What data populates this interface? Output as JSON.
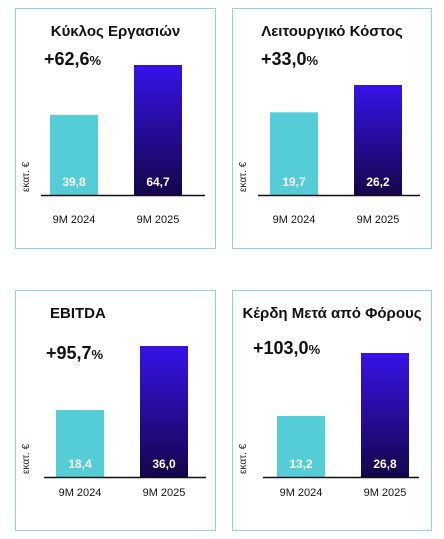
{
  "colors": {
    "panel_border": "#8ed4df",
    "bar_2024": "#55cdd6",
    "bar_2025_top": "#3712e8",
    "bar_2025_bottom": "#14064a",
    "axis": "#111111",
    "label_text": "#ffffff"
  },
  "chart_data": [
    {
      "type": "bar",
      "title": "Κύκλος Εργασιών",
      "change": "+62,6",
      "change_unit": "%",
      "ylabel": "εκατ. €",
      "categories": [
        "9M 2024",
        "9M 2025"
      ],
      "values": [
        39.8,
        64.7
      ],
      "value_labels": [
        "39,8",
        "64,7"
      ],
      "ylim": [
        0,
        70
      ]
    },
    {
      "type": "bar",
      "title": "Λειτουργικό Κόστος",
      "change": "+33,0",
      "change_unit": "%",
      "ylabel": "εκατ. €",
      "categories": [
        "9M 2024",
        "9M 2025"
      ],
      "values": [
        19.7,
        26.2
      ],
      "value_labels": [
        "19,7",
        "26,2"
      ],
      "ylim": [
        0,
        30
      ]
    },
    {
      "type": "bar",
      "title": "EBITDA",
      "change": "+95,7",
      "change_unit": "%",
      "ylabel": "εκατ. €",
      "categories": [
        "9M 2024",
        "9M 2025"
      ],
      "values": [
        18.4,
        36.0
      ],
      "value_labels": [
        "18,4",
        "36,0"
      ],
      "ylim": [
        0,
        40
      ]
    },
    {
      "type": "bar",
      "title": "Κέρδη Μετά από Φόρους",
      "change": "+103,0",
      "change_unit": "%",
      "ylabel": "εκατ. €",
      "categories": [
        "9M 2024",
        "9M 2025"
      ],
      "values": [
        13.2,
        26.8
      ],
      "value_labels": [
        "13,2",
        "26,8"
      ],
      "ylim": [
        0,
        30
      ]
    }
  ]
}
